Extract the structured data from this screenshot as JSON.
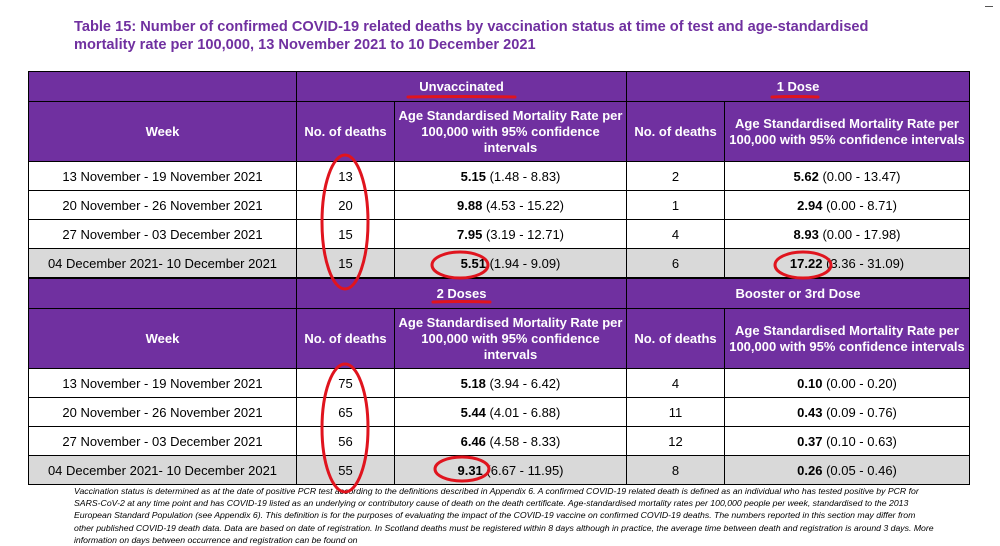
{
  "title": "Table 15: Number of confirmed COVID-19 related deaths by vaccination status at time of test and age-standardised mortality rate per 100,000, 13 November 2021 to 10 December 2021",
  "columns": {
    "week": "Week",
    "deaths": "No. of deaths",
    "rate": "Age Standardised Mortality Rate per 100,000 with 95% confidence intervals"
  },
  "tables": [
    {
      "groups": [
        "Unvaccinated",
        "1 Dose"
      ],
      "rows": [
        {
          "week": "13 November - 19 November 2021",
          "deaths_a": "13",
          "rate_a": "5.15",
          "ci_a": "(1.48 - 8.83)",
          "deaths_b": "2",
          "rate_b": "5.62",
          "ci_b": "(0.00 - 13.47)"
        },
        {
          "week": "20 November - 26 November 2021",
          "deaths_a": "20",
          "rate_a": "9.88",
          "ci_a": "(4.53 - 15.22)",
          "deaths_b": "1",
          "rate_b": "2.94",
          "ci_b": "(0.00 - 8.71)"
        },
        {
          "week": "27 November - 03 December 2021",
          "deaths_a": "15",
          "rate_a": "7.95",
          "ci_a": "(3.19 - 12.71)",
          "deaths_b": "4",
          "rate_b": "8.93",
          "ci_b": "(0.00 - 17.98)"
        },
        {
          "week": "04 December 2021- 10 December 2021",
          "deaths_a": "15",
          "rate_a": "5.51",
          "ci_a": "(1.94 - 9.09)",
          "deaths_b": "6",
          "rate_b": "17.22",
          "ci_b": "(3.36 - 31.09)"
        }
      ]
    },
    {
      "groups": [
        "2 Doses",
        "Booster or 3rd Dose"
      ],
      "rows": [
        {
          "week": "13 November - 19 November 2021",
          "deaths_a": "75",
          "rate_a": "5.18",
          "ci_a": "(3.94 - 6.42)",
          "deaths_b": "4",
          "rate_b": "0.10",
          "ci_b": "(0.00 - 0.20)"
        },
        {
          "week": "20 November - 26 November 2021",
          "deaths_a": "65",
          "rate_a": "5.44",
          "ci_a": "(4.01 - 6.88)",
          "deaths_b": "11",
          "rate_b": "0.43",
          "ci_b": "(0.09 - 0.76)"
        },
        {
          "week": "27 November - 03 December 2021",
          "deaths_a": "56",
          "rate_a": "6.46",
          "ci_a": "(4.58 - 8.33)",
          "deaths_b": "12",
          "rate_b": "0.37",
          "ci_b": "(0.10 - 0.63)"
        },
        {
          "week": "04 December 2021- 10 December 2021",
          "deaths_a": "55",
          "rate_a": "9.31",
          "ci_a": "(6.67 - 11.95)",
          "deaths_b": "8",
          "rate_b": "0.26",
          "ci_b": "(0.05 - 0.46)"
        }
      ]
    }
  ],
  "footnote": "Vaccination status is determined as at the date of positive PCR test according to the definitions described in Appendix 6. A confirmed COVID-19 related death is defined as an individual who has tested positive by PCR for SARS-CoV-2 at any time point and has COVID-19 listed as an underlying or contributory cause of death on the death certificate. Age-standardised mortality rates per 100,000 people per week, standardised to the 2013 European Standard Population (see Appendix 6). This definition is for the purposes of evaluating the impact of the COVID-19 vaccine on confirmed COVID-19 deaths. The numbers reported in this section may differ from other published COVID-19 death data. Data are based on date of registration. In Scotland deaths must be registered within 8 days although in practice, the average time between death and registration is around 3 days. More information on days between occurrence and registration can be found on",
  "colors": {
    "header": "#7030a0",
    "grey_row": "#d9d9d9",
    "annotation": "#e0141e"
  }
}
